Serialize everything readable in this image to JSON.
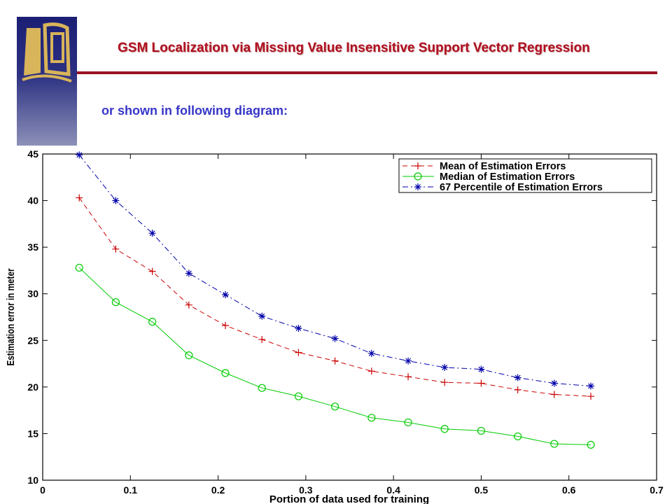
{
  "slide": {
    "title": "GSM Localization via Missing Value Insensitive Support Vector Regression",
    "subtitle": "or shown in following diagram:"
  },
  "colors": {
    "title": "#b01020",
    "rule": "#9a1424",
    "subtitle": "#3636c8",
    "logo_gold": "#d8b45a",
    "logo_blue": "#1b1f74"
  },
  "chart_data": {
    "type": "line",
    "title": "",
    "xlabel": "Portion of data used for training",
    "ylabel": "Estimation error in meter",
    "xlim": [
      0,
      0.7
    ],
    "ylim": [
      10,
      45
    ],
    "xticks": [
      "0",
      "0.1",
      "0.2",
      "0.3",
      "0.4",
      "0.5",
      "0.6",
      "0.7"
    ],
    "yticks": [
      "10",
      "15",
      "20",
      "25",
      "30",
      "35",
      "40",
      "45"
    ],
    "grid": false,
    "legend_position": "top-right",
    "x": [
      0.0417,
      0.0833,
      0.125,
      0.1667,
      0.2083,
      0.25,
      0.2917,
      0.3333,
      0.375,
      0.4167,
      0.4583,
      0.5,
      0.5417,
      0.5833,
      0.625
    ],
    "series": [
      {
        "name": "Mean of Estimation Errors",
        "color": "#cc0000",
        "marker": "plus",
        "dash": "dashed",
        "values": [
          40.3,
          34.8,
          32.4,
          28.8,
          26.6,
          25.1,
          23.7,
          22.8,
          21.7,
          21.1,
          20.5,
          20.4,
          19.7,
          19.2,
          19.0
        ]
      },
      {
        "name": "Median of Estimation Errors",
        "color": "#00cc00",
        "marker": "circle",
        "dash": "solid",
        "values": [
          32.8,
          29.1,
          27.0,
          23.4,
          21.5,
          19.9,
          19.0,
          17.9,
          16.7,
          16.2,
          15.5,
          15.3,
          14.7,
          13.9,
          13.8
        ]
      },
      {
        "name": "67 Percentile of Estimation Errors",
        "color": "#0000aa",
        "marker": "star",
        "dash": "dashdot",
        "values": [
          44.9,
          40.0,
          36.5,
          32.2,
          29.9,
          27.6,
          26.3,
          25.2,
          23.6,
          22.8,
          22.1,
          21.9,
          21.0,
          20.4,
          20.1
        ]
      }
    ]
  }
}
